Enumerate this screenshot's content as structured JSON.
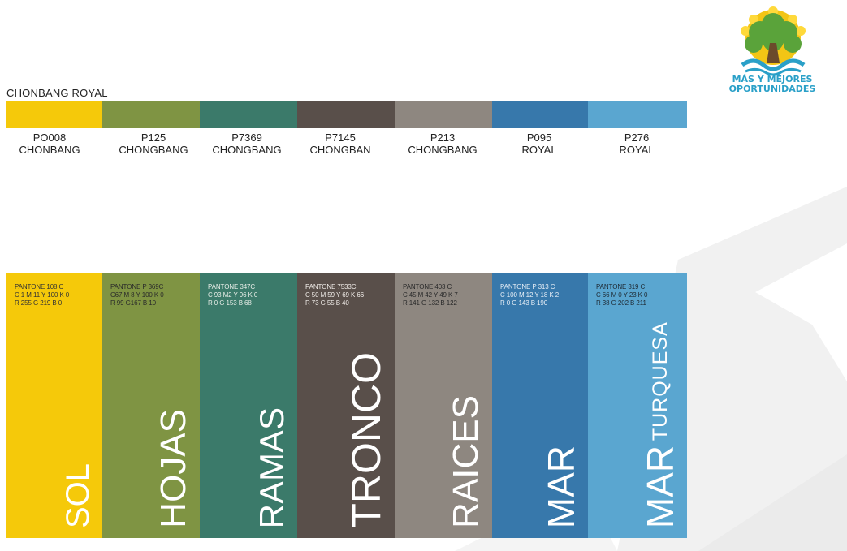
{
  "palette_title": "CHONBANG ROYAL",
  "colors": [
    {
      "hex": "#f5c90a",
      "code": "PO008",
      "name": "CHONBANG",
      "specs": [
        "PANTONE 108 C",
        "C 1 M 11 Y 100 K 0",
        "R 255 G 219 B 0"
      ],
      "word": "SOL",
      "sub": "",
      "spec_color": "#333333"
    },
    {
      "hex": "#7f9443",
      "code": "P125",
      "name": "CHONGBANG",
      "specs": [
        "PANTONE P 369C",
        "C67 M 8  Y 100 K 0",
        "R 99 G167 B 10"
      ],
      "word": "HOJAS",
      "sub": "",
      "spec_color": "#2a2a2a"
    },
    {
      "hex": "#3b7a6a",
      "code": "P7369",
      "name": "CHONGBANG",
      "specs": [
        "PANTONE 347C",
        "C 93 M2 Y 96 K 0",
        "R 0 G 153 B 68"
      ],
      "word": "RAMAS",
      "sub": "",
      "spec_color": "#e8eee8"
    },
    {
      "hex": "#594f4a",
      "code": "P7145",
      "name": "CHONGBAN",
      "specs": [
        "PANTONE 7533C",
        "C 50 M 59 Y 69 K 66",
        "R 73 G 55 B 40"
      ],
      "word": "TRONCO",
      "sub": "",
      "spec_color": "#f0ece8"
    },
    {
      "hex": "#8e8780",
      "code": "P213",
      "name": "CHONGBANG",
      "specs": [
        "PANTONE 403 C",
        "C 45 M 42 Y 49 K 7",
        "R 141 G 132 B 122"
      ],
      "word": "RAICES",
      "sub": "",
      "spec_color": "#2a2a2a"
    },
    {
      "hex": "#3778ab",
      "code": "P095",
      "name": "ROYAL",
      "specs": [
        "PANTONE P 313 C",
        "C 100 M 12  Y 18 K 2",
        "R 0 G 143 B 190"
      ],
      "word": "MAR",
      "sub": "",
      "spec_color": "#e6eef6"
    },
    {
      "hex": "#5aa6d0",
      "code": "P276",
      "name": "ROYAL",
      "specs": [
        "PANTONE 319 C",
        "C 66 M 0 Y 23 K 0",
        "R 38 G 202 B 211"
      ],
      "word": "MAR",
      "sub": "TURQUESA",
      "spec_color": "#1e2a33"
    }
  ],
  "logo": {
    "line1": "MÁS Y MEJORES",
    "line2": "OPORTUNIDADES"
  }
}
